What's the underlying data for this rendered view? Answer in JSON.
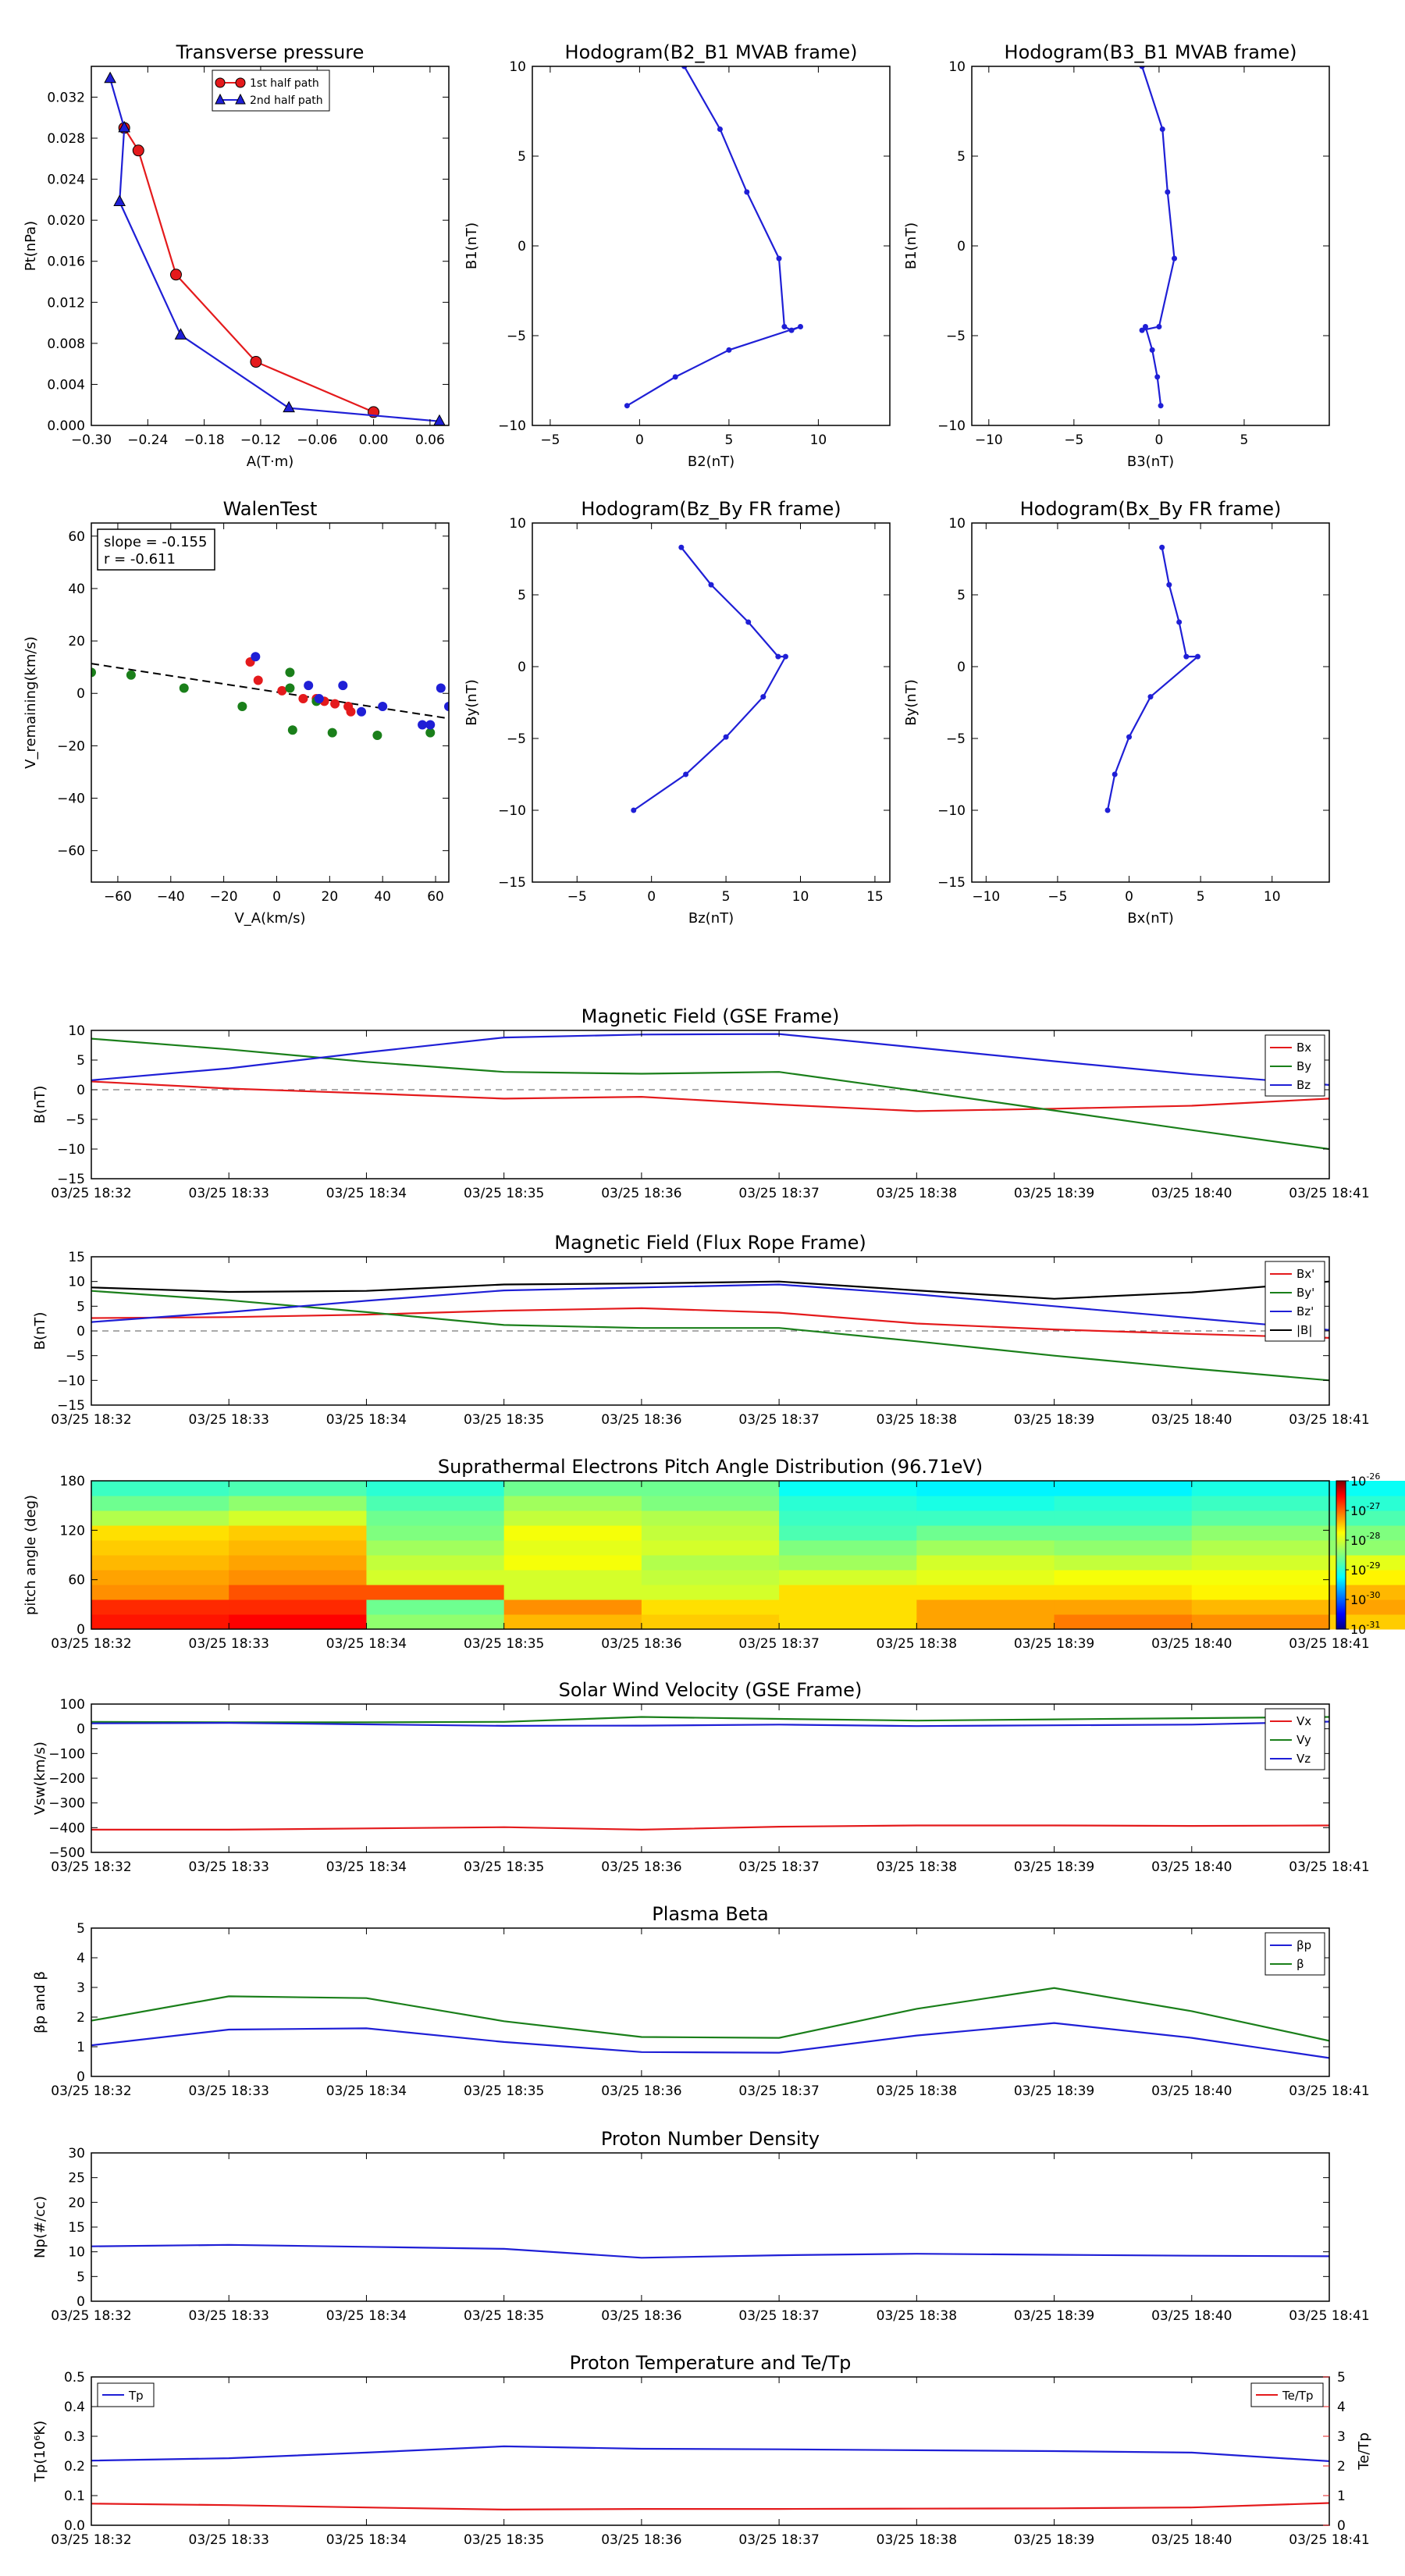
{
  "time_ticks": [
    "03/25 18:32",
    "03/25 18:33",
    "03/25 18:34",
    "03/25 18:35",
    "03/25 18:36",
    "03/25 18:37",
    "03/25 18:38",
    "03/25 18:39",
    "03/25 18:40",
    "03/25 18:41"
  ],
  "colors": {
    "red": "#e41a1c",
    "green": "#1a7f1a",
    "blue": "#1f1fd6",
    "black": "#000000"
  },
  "chart_data": [
    {
      "id": "transverse-pressure",
      "type": "line",
      "title": "Transverse pressure",
      "xlabel": "A(T·m)",
      "ylabel": "Pt(nPa)",
      "xlim": [
        -0.3,
        0.08
      ],
      "ylim": [
        0,
        0.035
      ],
      "xticks": [
        -0.3,
        -0.24,
        -0.18,
        -0.12,
        -0.06,
        0.0,
        0.06
      ],
      "xtick_labels": [
        "−0.30",
        "−0.24",
        "−0.18",
        "−0.12",
        "−0.06",
        "0.00",
        "0.06"
      ],
      "yticks": [
        0,
        0.004,
        0.008,
        0.012,
        0.016,
        0.02,
        0.024,
        0.028,
        0.032
      ],
      "ytick_labels": [
        "0.000",
        "0.004",
        "0.008",
        "0.012",
        "0.016",
        "0.020",
        "0.024",
        "0.028",
        "0.032"
      ],
      "legend": "top-center",
      "series": [
        {
          "name": "1st half path",
          "color": "red",
          "marker": "circle",
          "x": [
            -0.265,
            -0.25,
            -0.21,
            -0.125,
            0.0
          ],
          "y": [
            0.029,
            0.0268,
            0.0147,
            0.0062,
            0.0013
          ]
        },
        {
          "name": "2nd half path",
          "color": "blue",
          "marker": "triangle",
          "x": [
            -0.28,
            -0.265,
            -0.27,
            -0.205,
            -0.09,
            0.07
          ],
          "y": [
            0.0338,
            0.029,
            0.0218,
            0.0088,
            0.0017,
            0.0004
          ]
        }
      ]
    },
    {
      "id": "hodogram-b2-b1",
      "type": "line",
      "title": "Hodogram(B2_B1 MVAB frame)",
      "xlabel": "B2(nT)",
      "ylabel": "B1(nT)",
      "xlim": [
        -6,
        14
      ],
      "ylim": [
        -10,
        10
      ],
      "xticks": [
        -5,
        0,
        5,
        10
      ],
      "xtick_labels": [
        "−5",
        "0",
        "5",
        "10"
      ],
      "yticks": [
        -10,
        -5,
        0,
        5,
        10
      ],
      "ytick_labels": [
        "−10",
        "−5",
        "0",
        "5",
        "10"
      ],
      "series": [
        {
          "color": "blue",
          "marker": "dot",
          "x": [
            2.5,
            4.5,
            6,
            7.8,
            8.1,
            8.5,
            9,
            5,
            2,
            -0.7
          ],
          "y": [
            10,
            6.5,
            3,
            -0.7,
            -4.5,
            -4.7,
            -4.5,
            -5.8,
            -7.3,
            -8.9
          ]
        }
      ]
    },
    {
      "id": "hodogram-b3-b1",
      "type": "line",
      "title": "Hodogram(B3_B1 MVAB frame)",
      "xlabel": "B3(nT)",
      "ylabel": "B1(nT)",
      "xlim": [
        -11,
        10
      ],
      "ylim": [
        -10,
        10
      ],
      "xticks": [
        -10,
        -5,
        0,
        5
      ],
      "xtick_labels": [
        "−10",
        "−5",
        "0",
        "5"
      ],
      "yticks": [
        -10,
        -5,
        0,
        5,
        10
      ],
      "ytick_labels": [
        "−10",
        "−5",
        "0",
        "5",
        "10"
      ],
      "series": [
        {
          "color": "blue",
          "marker": "dot",
          "x": [
            -1,
            0.2,
            0.5,
            0.9,
            0,
            -1,
            -0.8,
            -0.4,
            -0.1,
            0.1
          ],
          "y": [
            10,
            6.5,
            3,
            -0.7,
            -4.5,
            -4.7,
            -4.5,
            -5.8,
            -7.3,
            -8.9
          ]
        }
      ]
    },
    {
      "id": "walen-test",
      "type": "scatter",
      "title": "WalenTest",
      "xlabel": "V_A(km/s)",
      "ylabel": "V_remaining(km/s)",
      "xlim": [
        -70,
        65
      ],
      "ylim": [
        -72,
        65
      ],
      "xticks": [
        -60,
        -40,
        -20,
        0,
        20,
        40,
        60
      ],
      "xtick_labels": [
        "−60",
        "−40",
        "−20",
        "0",
        "20",
        "40",
        "60"
      ],
      "yticks": [
        -60,
        -40,
        -20,
        0,
        20,
        40,
        60
      ],
      "ytick_labels": [
        "−60",
        "−40",
        "−20",
        "0",
        "20",
        "40",
        "60"
      ],
      "annotation_lines": [
        "slope = -0.155",
        "r = -0.611"
      ],
      "fit": {
        "slope": -0.155,
        "intercept": 0.5
      },
      "series": [
        {
          "color": "red",
          "x": [
            -10,
            -7,
            2,
            10,
            15,
            18,
            22,
            27,
            28
          ],
          "y": [
            12,
            5,
            1,
            -2,
            -2,
            -3,
            -4,
            -5,
            -7
          ]
        },
        {
          "color": "green",
          "x": [
            -70,
            -55,
            -35,
            -13,
            5,
            5,
            6,
            15,
            21,
            38,
            58
          ],
          "y": [
            8,
            7,
            2,
            -5,
            8,
            2,
            -14,
            -3,
            -15,
            -16,
            -15
          ]
        },
        {
          "color": "blue",
          "x": [
            -8,
            12,
            16,
            25,
            32,
            40,
            55,
            58,
            62,
            65
          ],
          "y": [
            14,
            3,
            -2,
            3,
            -7,
            -5,
            -12,
            -12,
            2,
            -5
          ]
        }
      ]
    },
    {
      "id": "hodogram-bz-by",
      "type": "line",
      "title": "Hodogram(Bz_By FR frame)",
      "xlabel": "Bz(nT)",
      "ylabel": "By(nT)",
      "xlim": [
        -8,
        16
      ],
      "ylim": [
        -15,
        10
      ],
      "xticks": [
        -5,
        0,
        5,
        10,
        15
      ],
      "xtick_labels": [
        "−5",
        "0",
        "5",
        "10",
        "15"
      ],
      "yticks": [
        -15,
        -10,
        -5,
        0,
        5,
        10
      ],
      "ytick_labels": [
        "−15",
        "−10",
        "−5",
        "0",
        "5",
        "10"
      ],
      "series": [
        {
          "color": "blue",
          "marker": "dot",
          "x": [
            2,
            4,
            6.5,
            8.5,
            9,
            7.5,
            5,
            2.3,
            -1.2
          ],
          "y": [
            8.3,
            5.7,
            3.1,
            0.7,
            0.7,
            -2.1,
            -4.9,
            -7.5,
            -10
          ]
        }
      ]
    },
    {
      "id": "hodogram-bx-by",
      "type": "line",
      "title": "Hodogram(Bx_By FR frame)",
      "xlabel": "Bx(nT)",
      "ylabel": "By(nT)",
      "xlim": [
        -11,
        14
      ],
      "ylim": [
        -15,
        10
      ],
      "xticks": [
        -10,
        -5,
        0,
        5,
        10
      ],
      "xtick_labels": [
        "−10",
        "−5",
        "0",
        "5",
        "10"
      ],
      "yticks": [
        -15,
        -10,
        -5,
        0,
        5,
        10
      ],
      "ytick_labels": [
        "−15",
        "−10",
        "−5",
        "0",
        "5",
        "10"
      ],
      "series": [
        {
          "color": "blue",
          "marker": "dot",
          "x": [
            2.3,
            2.8,
            3.5,
            4,
            4.8,
            1.5,
            0,
            -1,
            -1.5
          ],
          "y": [
            8.3,
            5.7,
            3.1,
            0.7,
            0.7,
            -2.1,
            -4.9,
            -7.5,
            -10
          ]
        }
      ]
    },
    {
      "id": "mag-gse",
      "type": "line",
      "title": "Magnetic Field (GSE Frame)",
      "ylabel": "B(nT)",
      "ylim": [
        -15,
        10
      ],
      "yticks": [
        -15,
        -10,
        -5,
        0,
        5,
        10
      ],
      "ytick_labels": [
        "−15",
        "−10",
        "−5",
        "0",
        "5",
        "10"
      ],
      "zero_line": true,
      "legend": "top-right",
      "series": [
        {
          "name": "Bx",
          "color": "red",
          "values": [
            1.4,
            0.2,
            -0.6,
            -1.5,
            -1.2,
            -2.5,
            -3.6,
            -3.2,
            -2.7,
            -1.5
          ]
        },
        {
          "name": "By",
          "color": "green",
          "values": [
            8.6,
            6.8,
            4.7,
            3,
            2.7,
            3,
            -0.2,
            -3.5,
            -6.8,
            -10
          ]
        },
        {
          "name": "Bz",
          "color": "blue",
          "values": [
            1.6,
            3.6,
            6.3,
            8.8,
            9.3,
            9.4,
            7.1,
            4.8,
            2.6,
            0.8
          ]
        }
      ]
    },
    {
      "id": "mag-fr",
      "type": "line",
      "title": "Magnetic Field (Flux Rope Frame)",
      "ylabel": "B(nT)",
      "ylim": [
        -15,
        15
      ],
      "yticks": [
        -15,
        -10,
        -5,
        0,
        5,
        10,
        15
      ],
      "ytick_labels": [
        "−15",
        "−10",
        "−5",
        "0",
        "5",
        "10",
        "15"
      ],
      "zero_line": true,
      "legend": "top-right",
      "series": [
        {
          "name": "Bx'",
          "color": "red",
          "values": [
            2.6,
            2.8,
            3.3,
            4.1,
            4.6,
            3.7,
            1.5,
            0.3,
            -0.6,
            -1.4
          ]
        },
        {
          "name": "By'",
          "color": "green",
          "values": [
            8.1,
            6.2,
            3.8,
            1.2,
            0.6,
            0.6,
            -2.1,
            -5,
            -7.6,
            -10
          ]
        },
        {
          "name": "Bz'",
          "color": "blue",
          "values": [
            1.8,
            3.8,
            6.1,
            8.2,
            8.8,
            9.4,
            7.4,
            5,
            2.6,
            0.2
          ]
        },
        {
          "name": "|B|",
          "color": "black",
          "values": [
            8.8,
            7.9,
            8.1,
            9.4,
            9.6,
            10,
            8.2,
            6.5,
            7.8,
            10
          ]
        }
      ]
    },
    {
      "id": "pad",
      "type": "heatmap",
      "title": "Suprathermal Electrons Pitch Angle Distribution (96.71eV)",
      "ylabel": "pitch angle (deg)",
      "ylim": [
        0,
        180
      ],
      "yticks": [
        0,
        60,
        120,
        180
      ],
      "ytick_labels": [
        "0",
        "60",
        "120",
        "180"
      ],
      "colorbar_exponents": [
        "-26",
        "-27",
        "-28",
        "-29",
        "-30",
        "-31"
      ],
      "log_range": [
        -31,
        -26
      ],
      "bins_deg": [
        [
          0,
          18
        ],
        [
          18,
          36
        ],
        [
          36,
          54
        ],
        [
          54,
          72
        ],
        [
          72,
          90
        ],
        [
          90,
          108
        ],
        [
          108,
          126
        ],
        [
          126,
          144
        ],
        [
          144,
          162
        ],
        [
          162,
          180
        ]
      ],
      "values_log": [
        [
          -26.6,
          -26.7,
          -27.2,
          -27.3,
          -27.4,
          -27.5,
          -27.6,
          -28.2,
          -28.6,
          -28.9
        ],
        [
          -26.5,
          -26.7,
          -26.9,
          -27.2,
          -27.3,
          -27.4,
          -27.5,
          -28.0,
          -28.4,
          -28.8
        ],
        [
          -28.4,
          -28.6,
          -26.9,
          -28.0,
          -28.1,
          -28.3,
          -28.5,
          -28.6,
          -28.8,
          -29.0
        ],
        [
          -27.4,
          -27.2,
          -28.0,
          -28.0,
          -27.8,
          -27.9,
          -27.8,
          -28.1,
          -28.3,
          -28.6
        ],
        [
          -27.5,
          -27.6,
          -28.0,
          -28.1,
          -28.2,
          -28.0,
          -28.1,
          -28.2,
          -28.5,
          -28.6
        ],
        [
          -27.6,
          -27.6,
          -27.6,
          -28.0,
          -28.3,
          -28.5,
          -28.8,
          -28.9,
          -29.0,
          -29.2
        ],
        [
          -27.3,
          -27.3,
          -27.6,
          -27.9,
          -28.0,
          -28.3,
          -28.6,
          -28.9,
          -29.1,
          -29.3
        ],
        [
          -27.1,
          -27.3,
          -27.6,
          -27.8,
          -28.1,
          -28.4,
          -28.6,
          -28.9,
          -29.0,
          -29.3
        ],
        [
          -27.2,
          -27.4,
          -27.7,
          -27.8,
          -28.0,
          -28.2,
          -28.4,
          -28.7,
          -28.9,
          -29.1
        ],
        [
          -27.5,
          -27.3,
          -27.4,
          -27.7,
          -27.9,
          -28.4,
          -28.5,
          -28.8,
          -29.0,
          -29.2
        ]
      ]
    },
    {
      "id": "sw-vel",
      "type": "line",
      "title": "Solar Wind Velocity (GSE Frame)",
      "ylabel": "Vsw(km/s)",
      "ylim": [
        -500,
        100
      ],
      "yticks": [
        -500,
        -400,
        -300,
        -200,
        -100,
        0,
        100
      ],
      "ytick_labels": [
        "−500",
        "−400",
        "−300",
        "−200",
        "−100",
        "0",
        "100"
      ],
      "legend": "top-right",
      "series": [
        {
          "name": "Vx",
          "color": "red",
          "values": [
            -408,
            -408,
            -403,
            -398,
            -408,
            -396,
            -391,
            -391,
            -393,
            -391
          ]
        },
        {
          "name": "Vy",
          "color": "green",
          "values": [
            28,
            26,
            26,
            28,
            48,
            40,
            33,
            38,
            43,
            48
          ]
        },
        {
          "name": "Vz",
          "color": "blue",
          "values": [
            22,
            24,
            18,
            12,
            13,
            17,
            11,
            14,
            17,
            29
          ]
        }
      ]
    },
    {
      "id": "plasma-beta",
      "type": "line",
      "title": "Plasma Beta",
      "ylabel": "βp and β",
      "ylim": [
        0,
        5
      ],
      "yticks": [
        0,
        1,
        2,
        3,
        4,
        5
      ],
      "ytick_labels": [
        "0",
        "1",
        "2",
        "3",
        "4",
        "5"
      ],
      "legend": "top-right",
      "series": [
        {
          "name": "βp",
          "color": "blue",
          "values": [
            1.05,
            1.58,
            1.62,
            1.16,
            0.82,
            0.8,
            1.38,
            1.8,
            1.3,
            0.62
          ]
        },
        {
          "name": "β",
          "color": "green",
          "values": [
            1.88,
            2.7,
            2.64,
            1.86,
            1.33,
            1.3,
            2.28,
            2.98,
            2.2,
            1.2
          ]
        }
      ]
    },
    {
      "id": "density",
      "type": "line",
      "title": "Proton Number Density",
      "ylabel": "Np(#/cc)",
      "ylim": [
        0,
        30
      ],
      "yticks": [
        0,
        5,
        10,
        15,
        20,
        25,
        30
      ],
      "ytick_labels": [
        "0",
        "5",
        "10",
        "15",
        "20",
        "25",
        "30"
      ],
      "series": [
        {
          "color": "blue",
          "values": [
            11.1,
            11.4,
            11,
            10.6,
            8.8,
            9.3,
            9.6,
            9.4,
            9.2,
            9.1
          ]
        }
      ]
    },
    {
      "id": "temperature",
      "type": "line",
      "title": "Proton Temperature and Te/Tp",
      "ylabel": "Tp(10⁶K)",
      "ylim": [
        0,
        0.5
      ],
      "yticks": [
        0,
        0.1,
        0.2,
        0.3,
        0.4,
        0.5
      ],
      "ytick_labels": [
        "0.0",
        "0.1",
        "0.2",
        "0.3",
        "0.4",
        "0.5"
      ],
      "y2label": "Te/Tp",
      "y2lim": [
        0,
        5
      ],
      "y2ticks": [
        0,
        1,
        2,
        3,
        4,
        5
      ],
      "y2tick_labels": [
        "0",
        "1",
        "2",
        "3",
        "4",
        "5"
      ],
      "series": [
        {
          "name": "Tp",
          "color": "blue",
          "axis": "left",
          "values": [
            0.218,
            0.226,
            0.245,
            0.266,
            0.258,
            0.256,
            0.253,
            0.25,
            0.245,
            0.216
          ]
        },
        {
          "name": "Te/Tp",
          "color": "red",
          "axis": "right",
          "values": [
            0.73,
            0.68,
            0.6,
            0.53,
            0.55,
            0.55,
            0.56,
            0.57,
            0.6,
            0.75
          ]
        }
      ]
    }
  ]
}
